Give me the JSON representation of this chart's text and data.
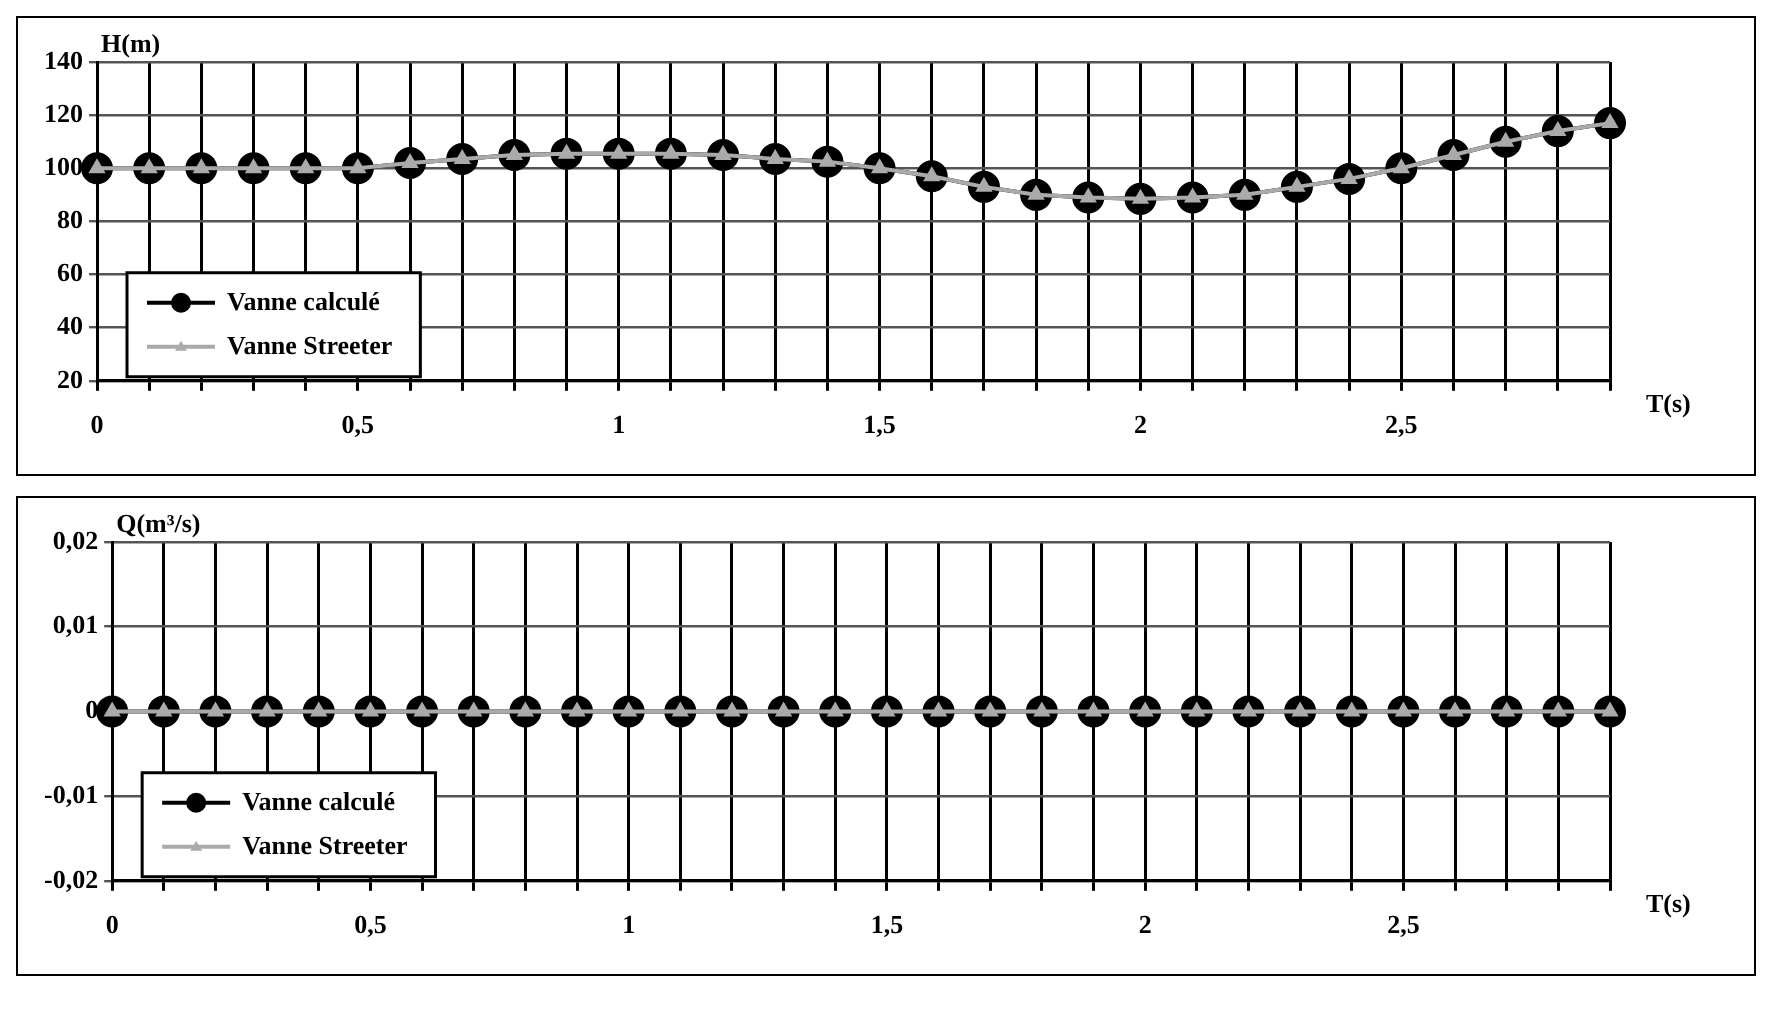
{
  "chart_data": [
    {
      "type": "line",
      "ylabel": "H(m)",
      "xlabel": "T(s)",
      "x": [
        0,
        0.1,
        0.2,
        0.3,
        0.4,
        0.5,
        0.6,
        0.7,
        0.8,
        0.9,
        1,
        1.1,
        1.2,
        1.3,
        1.4,
        1.5,
        1.6,
        1.7,
        1.8,
        1.9,
        2,
        2.1,
        2.2,
        2.3,
        2.4,
        2.5,
        2.6,
        2.7,
        2.8,
        2.9
      ],
      "series": [
        {
          "name": "Vanne calculé",
          "color": "#000000",
          "marker": "circle",
          "values": [
            100,
            100,
            100,
            100,
            100,
            100,
            102,
            103.5,
            105,
            105.5,
            105.5,
            105.5,
            105,
            103.5,
            102.5,
            100,
            97,
            93,
            90,
            89,
            88.5,
            89,
            90,
            93,
            96,
            100,
            105,
            110,
            114,
            117
          ]
        },
        {
          "name": "Vanne Streeter",
          "color": "#aaaaaa",
          "marker": "triangle",
          "values": [
            100,
            100,
            100,
            100,
            100,
            100,
            102,
            103.5,
            105,
            105.5,
            105.5,
            105.5,
            105,
            103.5,
            102.5,
            100,
            97,
            93,
            90,
            89,
            88.5,
            89,
            90,
            93,
            96,
            100,
            105,
            110,
            114,
            117
          ]
        }
      ],
      "xlim": [
        0,
        2.9
      ],
      "xticks": [
        0,
        {
          "value": 0.1,
          "label": null
        },
        {
          "value": 0.2,
          "label": null
        },
        {
          "value": 0.3,
          "label": null
        },
        {
          "value": 0.4,
          "label": null
        },
        {
          "value": 0.5,
          "label": "0,5"
        },
        {
          "value": 0.6,
          "label": null
        },
        {
          "value": 0.7,
          "label": null
        },
        {
          "value": 0.8,
          "label": null
        },
        {
          "value": 0.9,
          "label": null
        },
        1,
        {
          "value": 1.1,
          "label": null
        },
        {
          "value": 1.2,
          "label": null
        },
        {
          "value": 1.3,
          "label": null
        },
        {
          "value": 1.4,
          "label": null
        },
        {
          "value": 1.5,
          "label": "1,5"
        },
        {
          "value": 1.6,
          "label": null
        },
        {
          "value": 1.7,
          "label": null
        },
        {
          "value": 1.8,
          "label": null
        },
        {
          "value": 1.9,
          "label": null
        },
        2,
        {
          "value": 2.1,
          "label": null
        },
        {
          "value": 2.2,
          "label": null
        },
        {
          "value": 2.3,
          "label": null
        },
        {
          "value": 2.4,
          "label": null
        },
        {
          "value": 2.5,
          "label": "2,5"
        },
        {
          "value": 2.6,
          "label": null
        },
        {
          "value": 2.7,
          "label": null
        },
        {
          "value": 2.8,
          "label": null
        },
        {
          "value": 2.9,
          "label": null
        }
      ],
      "ylim": [
        20,
        140
      ],
      "yticks": [
        20,
        40,
        60,
        80,
        100,
        120,
        140
      ],
      "grid": true,
      "legend": "bottom left"
    },
    {
      "type": "line",
      "ylabel": "Q(m³/s)",
      "xlabel": "T(s)",
      "x": [
        0,
        0.1,
        0.2,
        0.3,
        0.4,
        0.5,
        0.6,
        0.7,
        0.8,
        0.9,
        1,
        1.1,
        1.2,
        1.3,
        1.4,
        1.5,
        1.6,
        1.7,
        1.8,
        1.9,
        2,
        2.1,
        2.2,
        2.3,
        2.4,
        2.5,
        2.6,
        2.7,
        2.8,
        2.9
      ],
      "series": [
        {
          "name": "Vanne calculé",
          "color": "#000000",
          "marker": "circle",
          "values": [
            0,
            0,
            0,
            0,
            0,
            0,
            0,
            0,
            0,
            0,
            0,
            0,
            0,
            0,
            0,
            0,
            0,
            0,
            0,
            0,
            0,
            0,
            0,
            0,
            0,
            0,
            0,
            0,
            0,
            0
          ]
        },
        {
          "name": "Vanne Streeter",
          "color": "#aaaaaa",
          "marker": "triangle",
          "values": [
            0,
            0,
            0,
            0,
            0,
            0,
            0,
            0,
            0,
            0,
            0,
            0,
            0,
            0,
            0,
            0,
            0,
            0,
            0,
            0,
            0,
            0,
            0,
            0,
            0,
            0,
            0,
            0,
            0,
            0
          ]
        }
      ],
      "xlim": [
        0,
        2.9
      ],
      "xticks": [
        0,
        {
          "value": 0.1,
          "label": null
        },
        {
          "value": 0.2,
          "label": null
        },
        {
          "value": 0.3,
          "label": null
        },
        {
          "value": 0.4,
          "label": null
        },
        {
          "value": 0.5,
          "label": "0,5"
        },
        {
          "value": 0.6,
          "label": null
        },
        {
          "value": 0.7,
          "label": null
        },
        {
          "value": 0.8,
          "label": null
        },
        {
          "value": 0.9,
          "label": null
        },
        1,
        {
          "value": 1.1,
          "label": null
        },
        {
          "value": 1.2,
          "label": null
        },
        {
          "value": 1.3,
          "label": null
        },
        {
          "value": 1.4,
          "label": null
        },
        {
          "value": 1.5,
          "label": "1,5"
        },
        {
          "value": 1.6,
          "label": null
        },
        {
          "value": 1.7,
          "label": null
        },
        {
          "value": 1.8,
          "label": null
        },
        {
          "value": 1.9,
          "label": null
        },
        2,
        {
          "value": 2.1,
          "label": null
        },
        {
          "value": 2.2,
          "label": null
        },
        {
          "value": 2.3,
          "label": null
        },
        {
          "value": 2.4,
          "label": null
        },
        {
          "value": 2.5,
          "label": "2,5"
        },
        {
          "value": 2.6,
          "label": null
        },
        {
          "value": 2.7,
          "label": null
        },
        {
          "value": 2.8,
          "label": null
        },
        {
          "value": 2.9,
          "label": null
        }
      ],
      "ylim": [
        -0.02,
        0.02
      ],
      "yticks": [
        {
          "value": -0.02,
          "label": "-0,02"
        },
        {
          "value": -0.01,
          "label": "-0,01"
        },
        0,
        {
          "value": 0.01,
          "label": "0,01"
        },
        {
          "value": 0.02,
          "label": "0,02"
        }
      ],
      "grid": true,
      "legend": "bottom left"
    }
  ]
}
